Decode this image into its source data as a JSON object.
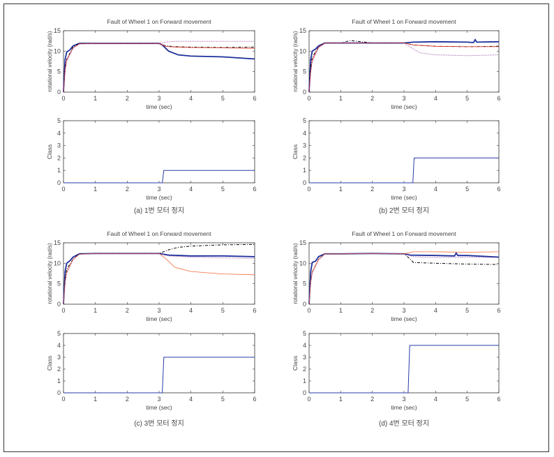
{
  "chart_data": {
    "type": "line",
    "panels": [
      {
        "caption": "(a) 1번 모터 정지",
        "velocity": {
          "title": "Fault of Wheel 1 on Forward movement",
          "xlabel": "time (sec)",
          "ylabel": "rotational velocity (rad/s)",
          "xlim": [
            0,
            6
          ],
          "ylim": [
            0,
            15
          ],
          "xticks": [
            "0",
            "1",
            "2",
            "3",
            "4",
            "5",
            "6"
          ],
          "yticks": [
            "0",
            "5",
            "10",
            "15"
          ],
          "series": [
            {
              "name": "wheel-blue",
              "color": "#1c2f9c",
              "style": "solid-thick",
              "t": [
                0,
                0.05,
                0.1,
                0.2,
                0.3,
                0.5,
                1,
                2,
                3,
                3.1,
                3.3,
                3.6,
                4,
                5,
                6
              ],
              "v": [
                0,
                8,
                9.8,
                10.3,
                11.3,
                11.9,
                11.9,
                11.9,
                11.9,
                11.5,
                10,
                9.1,
                8.8,
                8.6,
                8.1
              ]
            },
            {
              "name": "wheel-black",
              "color": "#000000",
              "style": "dashdot",
              "t": [
                0,
                0.05,
                0.1,
                0.2,
                0.3,
                0.5,
                1,
                2,
                3,
                3.2,
                3.5,
                4,
                5,
                6
              ],
              "v": [
                0,
                6,
                8,
                9.5,
                11,
                11.9,
                11.9,
                11.9,
                11.9,
                11.3,
                11.1,
                11,
                10.9,
                11
              ]
            },
            {
              "name": "wheel-red",
              "color": "#e03020",
              "style": "solid",
              "t": [
                0,
                0.05,
                0.1,
                0.2,
                0.3,
                0.5,
                1,
                2,
                3,
                3.2,
                3.5,
                4,
                5,
                6
              ],
              "v": [
                0,
                5.5,
                7.8,
                9.3,
                10.8,
                11.8,
                11.9,
                11.9,
                11.9,
                11.2,
                11,
                10.9,
                10.8,
                10.7
              ]
            },
            {
              "name": "wheel-purple",
              "color": "#9040a0",
              "style": "dotted",
              "t": [
                0,
                0.05,
                0.1,
                0.2,
                0.3,
                0.5,
                1,
                2,
                3,
                3.2,
                3.5,
                4,
                5,
                6
              ],
              "v": [
                0,
                5,
                7.5,
                9.2,
                10.7,
                11.8,
                11.9,
                11.9,
                11.9,
                12.2,
                12.4,
                12.4,
                12.4,
                12.4
              ]
            }
          ]
        },
        "class": {
          "xlabel": "time (sec)",
          "ylabel": "Class",
          "xlim": [
            0,
            6
          ],
          "ylim": [
            0,
            5
          ],
          "xticks": [
            "0",
            "1",
            "2",
            "3",
            "4",
            "5",
            "6"
          ],
          "yticks": [
            "0",
            "1",
            "2",
            "3",
            "4",
            "5"
          ],
          "t": [
            0,
            3.1,
            3.15,
            6
          ],
          "v": [
            0,
            0,
            1,
            1
          ]
        }
      },
      {
        "caption": "(b) 2번 모터 정지",
        "velocity": {
          "title": "Fault of Wheel 1 on Forward movement",
          "xlabel": "time (sec)",
          "ylabel": "rotational velocity (rad/s)",
          "xlim": [
            0,
            6
          ],
          "ylim": [
            0,
            15
          ],
          "xticks": [
            "0",
            "1",
            "2",
            "3",
            "4",
            "5",
            "6"
          ],
          "yticks": [
            "0",
            "5",
            "10",
            "15"
          ],
          "series": [
            {
              "name": "wheel-blue",
              "color": "#1c2f9c",
              "style": "solid-thick",
              "t": [
                0,
                0.05,
                0.1,
                0.2,
                0.3,
                0.5,
                1,
                2,
                3,
                3.3,
                4,
                5,
                5.2,
                5.25,
                5.3,
                6
              ],
              "v": [
                0,
                8,
                10,
                10.5,
                11.3,
                12,
                12,
                12,
                12,
                12.2,
                12.3,
                12.2,
                12.1,
                12.8,
                12.2,
                12.3
              ]
            },
            {
              "name": "wheel-black",
              "color": "#000000",
              "style": "dashdot",
              "t": [
                0,
                0.05,
                0.1,
                0.2,
                0.3,
                0.5,
                1,
                1.3,
                2,
                3,
                3.3,
                4,
                5,
                6
              ],
              "v": [
                0,
                6,
                8.5,
                9.8,
                11,
                12,
                12,
                12.6,
                12,
                12,
                11.5,
                11.2,
                11.1,
                11.2
              ]
            },
            {
              "name": "wheel-red",
              "color": "#e03020",
              "style": "solid",
              "t": [
                0,
                0.05,
                0.1,
                0.2,
                0.3,
                0.5,
                1,
                2,
                3,
                3.3,
                4,
                5,
                6
              ],
              "v": [
                0,
                5,
                7.8,
                9.5,
                11,
                12,
                12,
                12,
                12,
                11.5,
                11.2,
                11.1,
                11.1
              ]
            },
            {
              "name": "wheel-purple",
              "color": "#9040a0",
              "style": "dotted",
              "t": [
                0,
                0.05,
                0.1,
                0.2,
                0.3,
                0.5,
                1,
                2,
                3,
                3.2,
                3.5,
                4,
                5,
                6
              ],
              "v": [
                0,
                5,
                7.5,
                9.2,
                10.8,
                11.9,
                12,
                12,
                12,
                11,
                9.6,
                9.1,
                8.9,
                9.1
              ]
            }
          ]
        },
        "class": {
          "xlabel": "time (sec)",
          "ylabel": "Class",
          "xlim": [
            0,
            6
          ],
          "ylim": [
            0,
            5
          ],
          "xticks": [
            "0",
            "1",
            "2",
            "3",
            "4",
            "5",
            "6"
          ],
          "yticks": [
            "0",
            "1",
            "2",
            "3",
            "4",
            "5"
          ],
          "t": [
            0,
            3.28,
            3.32,
            6
          ],
          "v": [
            0,
            0,
            2,
            2
          ]
        }
      },
      {
        "caption": "(c) 3번 모터 정지",
        "velocity": {
          "title": "Fault of Wheel 1 on Forward movement",
          "xlabel": "time (sec)",
          "ylabel": "rotational velocity (rad/s)",
          "xlim": [
            0,
            6
          ],
          "ylim": [
            0,
            15
          ],
          "xticks": [
            "0",
            "1",
            "2",
            "3",
            "4",
            "5",
            "6"
          ],
          "yticks": [
            "0",
            "5",
            "10",
            "15"
          ],
          "series": [
            {
              "name": "wheel-blue",
              "color": "#1c2f9c",
              "style": "solid-thick",
              "t": [
                0,
                0.05,
                0.1,
                0.2,
                0.3,
                0.5,
                1,
                2,
                3,
                3.3,
                4,
                5,
                6
              ],
              "v": [
                0,
                8,
                10,
                10.6,
                11.5,
                12.3,
                12.4,
                12.4,
                12.4,
                12,
                11.8,
                11.8,
                11.6
              ]
            },
            {
              "name": "wheel-black",
              "color": "#000000",
              "style": "dashdot",
              "t": [
                0,
                0.05,
                0.1,
                0.2,
                0.3,
                0.5,
                1,
                2,
                3,
                3.3,
                3.6,
                4,
                5,
                6
              ],
              "v": [
                0,
                6,
                8.5,
                9.8,
                11,
                12.3,
                12.4,
                12.4,
                12.4,
                13.3,
                13.9,
                14.2,
                14.5,
                14.6
              ]
            },
            {
              "name": "wheel-orange",
              "color": "#f06a3a",
              "style": "solid",
              "t": [
                0,
                0.05,
                0.1,
                0.2,
                0.3,
                0.5,
                1,
                2,
                3,
                3.2,
                3.5,
                4,
                5,
                6
              ],
              "v": [
                0,
                5.5,
                7.8,
                9.5,
                11,
                12.2,
                12.4,
                12.4,
                12.4,
                11.2,
                9,
                8,
                7.4,
                7.2
              ]
            },
            {
              "name": "wheel-purple",
              "color": "#9040a0",
              "style": "dotted",
              "t": [
                0,
                0.05,
                0.1,
                0.2,
                0.3,
                0.5,
                1,
                2,
                3,
                3.3,
                4,
                5,
                6
              ],
              "v": [
                0,
                5,
                7.5,
                9.2,
                10.8,
                12.2,
                12.4,
                12.4,
                12.4,
                11.8,
                11.5,
                11.3,
                11.2
              ]
            }
          ]
        },
        "class": {
          "xlabel": "time (sec)",
          "ylabel": "Class",
          "xlim": [
            0,
            6
          ],
          "ylim": [
            0,
            5
          ],
          "xticks": [
            "0",
            "1",
            "2",
            "3",
            "4",
            "5",
            "6"
          ],
          "yticks": [
            "0",
            "1",
            "2",
            "3",
            "4",
            "5"
          ],
          "t": [
            0,
            3.1,
            3.15,
            6
          ],
          "v": [
            0,
            0,
            3,
            3
          ]
        }
      },
      {
        "caption": "(d) 4번 모터 정지",
        "velocity": {
          "title": "Fault of Wheel 1 on Forward movement",
          "xlabel": "time (sec)",
          "ylabel": "rotational velocity (rad/s)",
          "xlim": [
            0,
            6
          ],
          "ylim": [
            0,
            15
          ],
          "xticks": [
            "0",
            "1",
            "2",
            "3",
            "4",
            "5",
            "6"
          ],
          "yticks": [
            "0",
            "5",
            "10",
            "15"
          ],
          "series": [
            {
              "name": "wheel-blue",
              "color": "#1c2f9c",
              "style": "solid-thick",
              "t": [
                0,
                0.05,
                0.1,
                0.2,
                0.3,
                0.5,
                1,
                2,
                3,
                3.2,
                4,
                4.6,
                4.65,
                4.7,
                5,
                6
              ],
              "v": [
                0,
                8,
                10.2,
                10.5,
                11.6,
                12.3,
                12.3,
                12.4,
                12.3,
                12,
                11.9,
                11.8,
                12.5,
                11.9,
                11.9,
                11.5
              ]
            },
            {
              "name": "wheel-black",
              "color": "#000000",
              "style": "dashdot",
              "t": [
                0,
                0.05,
                0.1,
                0.2,
                0.3,
                0.5,
                1,
                2,
                3,
                3.2,
                3.3,
                4,
                5,
                6
              ],
              "v": [
                0,
                5.5,
                8,
                9.5,
                11,
                12.3,
                12.3,
                12.4,
                12.3,
                11,
                10.2,
                10,
                9.8,
                9.7
              ]
            },
            {
              "name": "wheel-orange",
              "color": "#f06a3a",
              "style": "solid",
              "t": [
                0,
                0.05,
                0.1,
                0.2,
                0.3,
                0.5,
                1,
                2,
                3,
                3.3,
                4,
                5,
                6
              ],
              "v": [
                0,
                5.5,
                8,
                9.5,
                11,
                12.3,
                12.3,
                12.4,
                12.3,
                12.8,
                12.8,
                12.7,
                12.8
              ]
            },
            {
              "name": "wheel-purple",
              "color": "#9040a0",
              "style": "dotted",
              "t": [
                0,
                0.05,
                0.1,
                0.2,
                0.3,
                0.5,
                1,
                2,
                3,
                3.3,
                4,
                5,
                6
              ],
              "v": [
                0,
                5,
                7.5,
                9.2,
                10.8,
                12.2,
                12.3,
                12.4,
                12.3,
                11.6,
                11.4,
                11.5,
                11.4
              ]
            }
          ]
        },
        "class": {
          "xlabel": "time (sec)",
          "ylabel": "Class",
          "xlim": [
            0,
            6
          ],
          "ylim": [
            0,
            5
          ],
          "xticks": [
            "0",
            "1",
            "2",
            "3",
            "4",
            "5",
            "6"
          ],
          "yticks": [
            "0",
            "1",
            "2",
            "3",
            "4",
            "5"
          ],
          "t": [
            0,
            3.13,
            3.18,
            6
          ],
          "v": [
            0,
            0,
            4,
            4
          ]
        }
      }
    ]
  }
}
